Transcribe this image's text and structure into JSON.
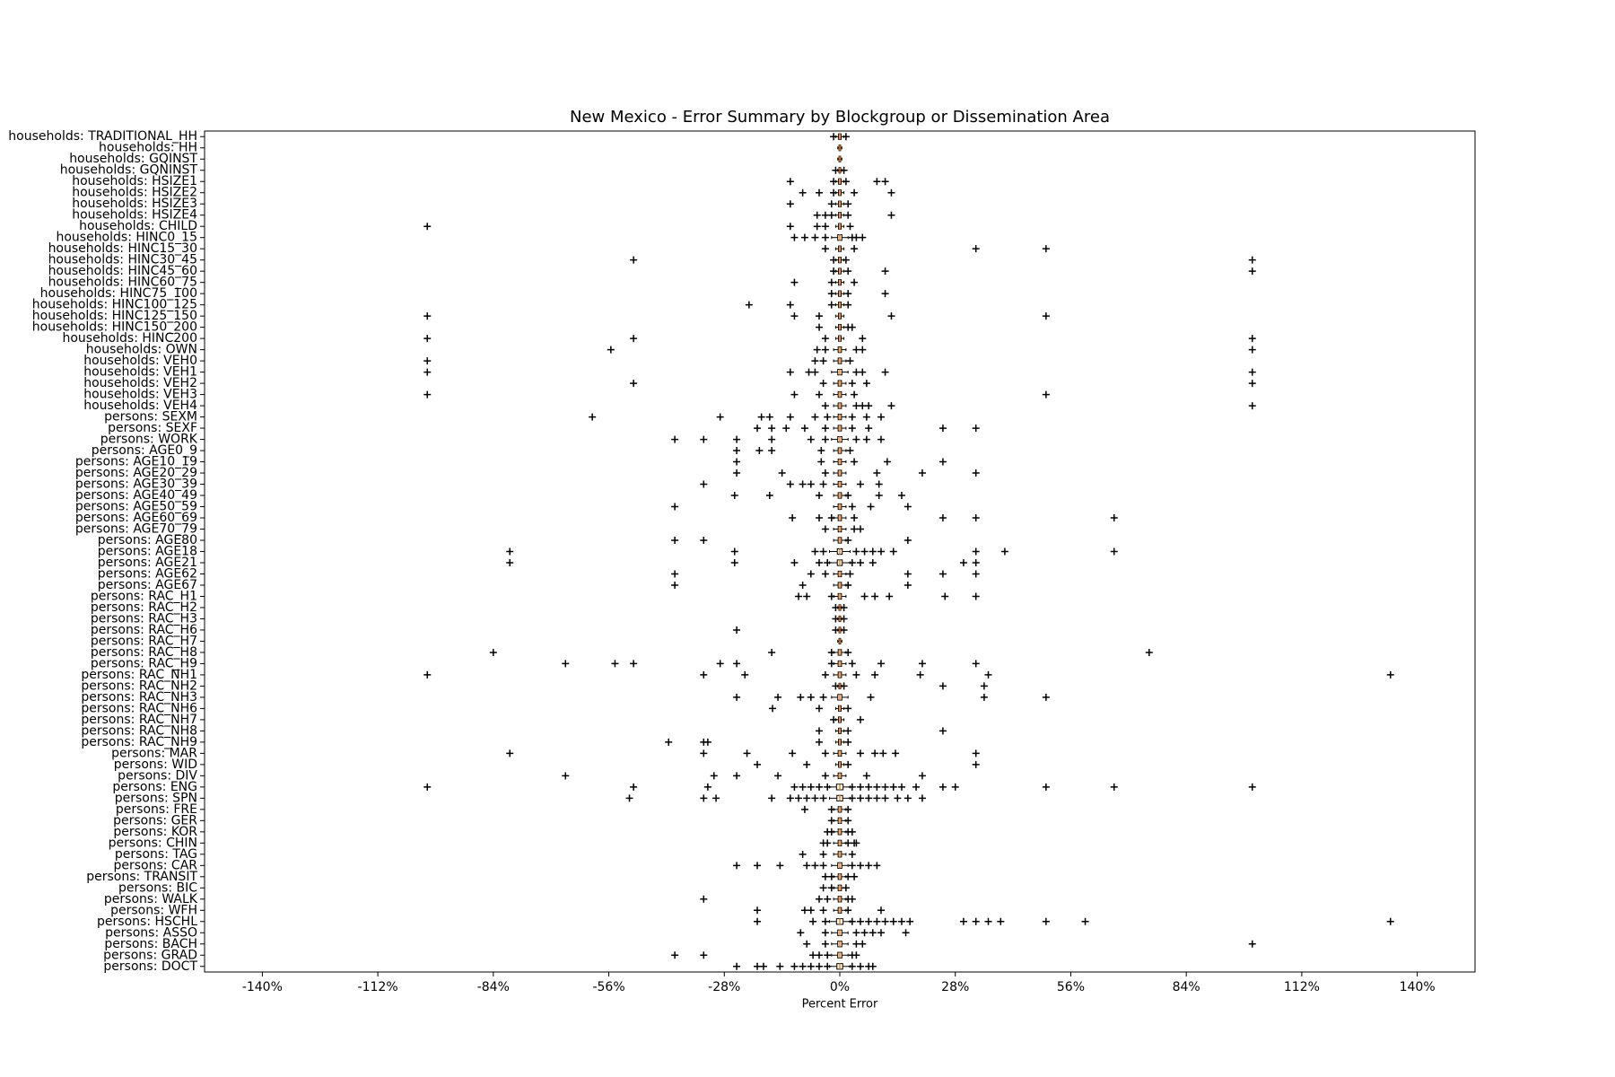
{
  "chart_data": {
    "type": "boxplot",
    "title": "New Mexico - Error Summary by Blockgroup or Dissemination Area",
    "x_label": "Percent Error",
    "color": "#000000",
    "median_color": "#ff7f0e",
    "xlim": [
      -154,
      154
    ],
    "xticks": [
      {
        "value": -140,
        "label": "-140%"
      },
      {
        "value": -112,
        "label": "-112%"
      },
      {
        "value": -84,
        "label": "-84%"
      },
      {
        "value": -56,
        "label": "-56%"
      },
      {
        "value": -28,
        "label": "-28%"
      },
      {
        "value": 0,
        "label": "0%"
      },
      {
        "value": 28,
        "label": "28%"
      },
      {
        "value": 56,
        "label": "56%"
      },
      {
        "value": 84,
        "label": "84%"
      },
      {
        "value": 112,
        "label": "112%"
      },
      {
        "value": 140,
        "label": "140%"
      }
    ],
    "categories": [
      "households: TRADITIONAL_HH",
      "households: HH",
      "households: GQINST",
      "households: GQNINST",
      "households: HSIZE1",
      "households: HSIZE2",
      "households: HSIZE3",
      "households: HSIZE4",
      "households: CHILD",
      "households: HINC0_15",
      "households: HINC15_30",
      "households: HINC30_45",
      "households: HINC45_60",
      "households: HINC60_75",
      "households: HINC75_100",
      "households: HINC100_125",
      "households: HINC125_150",
      "households: HINC150_200",
      "households: HINC200",
      "households: OWN",
      "households: VEH0",
      "households: VEH1",
      "households: VEH2",
      "households: VEH3",
      "households: VEH4",
      "persons: SEXM",
      "persons: SEXF",
      "persons: WORK",
      "persons: AGE0_9",
      "persons: AGE10_19",
      "persons: AGE20_29",
      "persons: AGE30_39",
      "persons: AGE40_49",
      "persons: AGE50_59",
      "persons: AGE60_69",
      "persons: AGE70_79",
      "persons: AGE80",
      "persons: AGE18",
      "persons: AGE21",
      "persons: AGE62",
      "persons: AGE67",
      "persons: RAC_H1",
      "persons: RAC_H2",
      "persons: RAC_H3",
      "persons: RAC_H6",
      "persons: RAC_H7",
      "persons: RAC_H8",
      "persons: RAC_H9",
      "persons: RAC_NH1",
      "persons: RAC_NH2",
      "persons: RAC_NH3",
      "persons: RAC_NH6",
      "persons: RAC_NH7",
      "persons: RAC_NH8",
      "persons: RAC_NH9",
      "persons: MAR",
      "persons: WID",
      "persons: DIV",
      "persons: ENG",
      "persons: SPN",
      "persons: FRE",
      "persons: GER",
      "persons: KOR",
      "persons: CHIN",
      "persons: TAG",
      "persons: CAR",
      "persons: TRANSIT",
      "persons: BIC",
      "persons: WALK",
      "persons: WFH",
      "persons: HSCHL",
      "persons: ASSO",
      "persons: BACH",
      "persons: GRAD",
      "persons: DOCT"
    ],
    "boxes": [
      [
        -1,
        -0.3,
        0,
        0.3,
        1
      ],
      [
        -0.5,
        -0.2,
        0,
        0.2,
        0.5
      ],
      [
        -0.5,
        -0.2,
        0,
        0.2,
        0.5
      ],
      [
        -0.5,
        -0.2,
        0,
        0.2,
        0.5
      ],
      [
        -1,
        -0.3,
        0,
        0.3,
        1
      ],
      [
        -1,
        -0.3,
        0,
        0.3,
        1
      ],
      [
        -1,
        -0.3,
        0,
        0.3,
        1
      ],
      [
        -1,
        -0.3,
        0,
        0.3,
        1
      ],
      [
        -1,
        -0.3,
        0,
        0.3,
        1
      ],
      [
        -2,
        -0.5,
        0,
        0.5,
        2
      ],
      [
        -1,
        -0.3,
        0,
        0.3,
        1
      ],
      [
        -1,
        -0.3,
        0,
        0.3,
        1
      ],
      [
        -1,
        -0.3,
        0,
        0.3,
        1
      ],
      [
        -1,
        -0.3,
        0,
        0.3,
        1
      ],
      [
        -1,
        -0.3,
        0,
        0.3,
        1
      ],
      [
        -1,
        -0.3,
        0,
        0.3,
        1
      ],
      [
        -1,
        -0.3,
        0,
        0.3,
        1
      ],
      [
        -1,
        -0.3,
        0,
        0.3,
        1
      ],
      [
        -1,
        -0.3,
        0,
        0.3,
        1
      ],
      [
        -1.5,
        -0.4,
        0,
        0.4,
        1.5
      ],
      [
        -1.5,
        -0.4,
        0,
        0.4,
        1.5
      ],
      [
        -2,
        -0.5,
        0,
        0.5,
        2
      ],
      [
        -1.5,
        -0.4,
        0,
        0.4,
        1.5
      ],
      [
        -1.5,
        -0.4,
        0,
        0.4,
        1.5
      ],
      [
        -1.5,
        -0.4,
        0,
        0.4,
        1.5
      ],
      [
        -1.5,
        -0.4,
        0,
        0.4,
        1.5
      ],
      [
        -1.5,
        -0.4,
        0,
        0.4,
        1.5
      ],
      [
        -2,
        -0.5,
        0,
        0.5,
        2
      ],
      [
        -1.5,
        -0.4,
        0,
        0.4,
        1.5
      ],
      [
        -1.5,
        -0.4,
        0,
        0.4,
        1.5
      ],
      [
        -1.5,
        -0.4,
        0,
        0.4,
        1.5
      ],
      [
        -1.5,
        -0.4,
        0,
        0.4,
        1.5
      ],
      [
        -1.5,
        -0.4,
        0,
        0.4,
        1.5
      ],
      [
        -1.5,
        -0.4,
        0,
        0.4,
        1.5
      ],
      [
        -1.5,
        -0.4,
        0,
        0.4,
        1.5
      ],
      [
        -1.5,
        -0.4,
        0,
        0.4,
        1.5
      ],
      [
        -1.5,
        -0.4,
        0,
        0.4,
        1.5
      ],
      [
        -2.5,
        -0.6,
        0,
        0.6,
        2.5
      ],
      [
        -2.5,
        -0.6,
        0,
        0.6,
        2.5
      ],
      [
        -1.5,
        -0.4,
        0,
        0.4,
        1.5
      ],
      [
        -1.5,
        -0.4,
        0,
        0.4,
        1.5
      ],
      [
        -1.5,
        -0.4,
        0,
        0.4,
        1.5
      ],
      [
        -0.5,
        -0.2,
        0,
        0.2,
        0.5
      ],
      [
        -0.5,
        -0.2,
        0,
        0.2,
        0.5
      ],
      [
        -0.5,
        -0.2,
        0,
        0.2,
        0.5
      ],
      [
        -0.5,
        -0.2,
        0,
        0.2,
        0.5
      ],
      [
        -1.5,
        -0.4,
        0,
        0.4,
        1.5
      ],
      [
        -1.5,
        -0.4,
        0,
        0.4,
        1.5
      ],
      [
        -1.5,
        -0.4,
        0,
        0.4,
        1.5
      ],
      [
        -0.5,
        -0.2,
        0,
        0.2,
        0.5
      ],
      [
        -2,
        -0.5,
        0,
        0.5,
        2
      ],
      [
        -1,
        -0.3,
        0,
        0.3,
        1
      ],
      [
        -1,
        -0.3,
        0,
        0.3,
        1
      ],
      [
        -1,
        -0.3,
        0,
        0.3,
        1
      ],
      [
        -1,
        -0.3,
        0,
        0.3,
        1
      ],
      [
        -1.5,
        -0.4,
        0,
        0.4,
        1.5
      ],
      [
        -1,
        -0.3,
        0,
        0.3,
        1
      ],
      [
        -1.5,
        -0.4,
        0,
        0.4,
        1.5
      ],
      [
        -2.5,
        -0.8,
        0,
        0.8,
        2.5
      ],
      [
        -2.5,
        -0.7,
        0,
        0.7,
        2.5
      ],
      [
        -1.5,
        -0.4,
        0,
        0.4,
        1.5
      ],
      [
        -1.5,
        -0.4,
        0,
        0.4,
        1.5
      ],
      [
        -1.5,
        -0.4,
        0,
        0.4,
        1.5
      ],
      [
        -1.5,
        -0.4,
        0,
        0.4,
        1.5
      ],
      [
        -1.5,
        -0.4,
        0,
        0.4,
        1.5
      ],
      [
        -2,
        -0.5,
        0,
        0.5,
        2
      ],
      [
        -1.5,
        -0.4,
        0,
        0.4,
        1.5
      ],
      [
        -1.5,
        -0.4,
        0,
        0.4,
        1.5
      ],
      [
        -1.5,
        -0.4,
        0,
        0.4,
        1.5
      ],
      [
        -1.5,
        -0.4,
        0,
        0.4,
        1.5
      ],
      [
        -2.5,
        -0.8,
        0,
        0.8,
        2.5
      ],
      [
        -2,
        -0.5,
        0,
        0.5,
        2
      ],
      [
        -2,
        -0.5,
        0,
        0.5,
        2
      ],
      [
        -2,
        -0.5,
        0,
        0.5,
        2
      ],
      [
        -2.5,
        -0.7,
        0,
        0.7,
        2.5
      ]
    ],
    "fliers": [
      [
        -1.5,
        1.5
      ],
      [],
      [],
      [
        -1,
        1
      ],
      [
        -12,
        -1.5,
        1.5,
        9,
        11
      ],
      [
        -9,
        -5,
        -1.5,
        3.5,
        12.5
      ],
      [
        -12,
        -2,
        2
      ],
      [
        -5.5,
        -3.5,
        -2,
        2,
        12.5
      ],
      [
        -100,
        -12,
        -5.5,
        -3.5,
        2.5
      ],
      [
        -11,
        -8.5,
        -6,
        -3.5,
        3,
        4,
        5.5
      ],
      [
        -3.5,
        3.5,
        33,
        50
      ],
      [
        -50,
        -1.5,
        1.5,
        100
      ],
      [
        -1.5,
        2,
        11,
        100
      ],
      [
        -11,
        -2,
        3.5
      ],
      [
        -2,
        2,
        11
      ],
      [
        -22,
        -12,
        -2,
        2
      ],
      [
        -100,
        -11,
        -5,
        12.5,
        50
      ],
      [
        -5,
        2,
        3
      ],
      [
        -100,
        -50,
        -3.5,
        5.5,
        100
      ],
      [
        -55.5,
        -5.5,
        -3.5,
        4,
        5.5,
        100
      ],
      [
        -100,
        -6,
        -4,
        2.5
      ],
      [
        -100,
        -12,
        -7.5,
        -6,
        4,
        5.5,
        11,
        100
      ],
      [
        -50,
        -4,
        3,
        6.5,
        100
      ],
      [
        -100,
        -11,
        -5,
        3.5,
        50
      ],
      [
        -3.5,
        4,
        5.5,
        7,
        12.5,
        100
      ],
      [
        -60,
        -29,
        -19,
        -17,
        -12,
        -6,
        -3,
        3,
        6.5,
        10
      ],
      [
        -20,
        -16.5,
        -13,
        -8.5,
        -3.5,
        3,
        7,
        25,
        33
      ],
      [
        -40,
        -33,
        -25,
        -16.5,
        -7,
        -3.5,
        4,
        6.5,
        10
      ],
      [
        -25,
        -19.5,
        -16.5,
        -4.5,
        2.5
      ],
      [
        -25,
        -4.5,
        3.5,
        11.5,
        25
      ],
      [
        -25,
        -14,
        -3.5,
        9,
        20,
        33
      ],
      [
        -33,
        -12,
        -9,
        -7,
        -4,
        5,
        9.5
      ],
      [
        -25.5,
        -17,
        -5,
        2,
        9.5,
        15
      ],
      [
        -40,
        3,
        7.5,
        16.5
      ],
      [
        -11.5,
        -5,
        -2,
        3.5,
        25,
        33,
        66.5
      ],
      [
        -3.5,
        3.5,
        5
      ],
      [
        -40,
        -33,
        2,
        16.5
      ],
      [
        -80,
        -25.5,
        -6,
        -4,
        4,
        6,
        8,
        10,
        13,
        33,
        40,
        66.5
      ],
      [
        -80,
        -25.5,
        -11,
        -5,
        -3,
        3,
        5,
        8,
        30,
        33
      ],
      [
        -40,
        -7,
        -3.5,
        2.5,
        16.5,
        25,
        33
      ],
      [
        -40,
        -9,
        2,
        16.5
      ],
      [
        -10,
        -8,
        -2,
        6,
        8.5,
        12,
        25.5,
        33
      ],
      [
        -1,
        1
      ],
      [
        -1,
        1
      ],
      [
        -25,
        -1,
        1
      ],
      [],
      [
        -84,
        -16.5,
        -2,
        2,
        75
      ],
      [
        -66.5,
        -54.5,
        -50,
        -29,
        -25,
        -2,
        3,
        10,
        20,
        33
      ],
      [
        -100,
        -33,
        -23,
        -3.5,
        4,
        8.5,
        19.5,
        36,
        133.5
      ],
      [
        -1,
        1,
        25,
        35
      ],
      [
        -25,
        -15,
        -9.5,
        -7,
        -4,
        7.5,
        35,
        50
      ],
      [
        -16.3,
        -5,
        2
      ],
      [
        -1.5,
        5
      ],
      [
        -5,
        2,
        25
      ],
      [
        -41.5,
        -33,
        -32,
        -5,
        2
      ],
      [
        -80,
        -33,
        -22.5,
        -11.5,
        -3.5,
        5,
        8.5,
        10.5,
        13.5,
        33
      ],
      [
        -20,
        -8,
        2,
        33
      ],
      [
        -66.5,
        -30.5,
        -25,
        -15,
        -3.5,
        6.5,
        20
      ],
      [
        -100,
        -50,
        -32,
        -11,
        -9,
        -7,
        -5,
        -3,
        3,
        5,
        7,
        9,
        11,
        13,
        15,
        18.5,
        25,
        28,
        50,
        66.5,
        100
      ],
      [
        -51,
        -33,
        -30,
        -16.5,
        -12,
        -10,
        -8,
        -6,
        -4,
        3,
        5,
        7,
        9,
        11,
        14,
        16.5,
        20
      ],
      [
        -8.5,
        -2,
        2
      ],
      [
        -2,
        2
      ],
      [
        -3,
        -2,
        2,
        3
      ],
      [
        -4,
        -3,
        2,
        3.5,
        4
      ],
      [
        -9,
        -4,
        3
      ],
      [
        -25,
        -20,
        -14.5,
        -8,
        -6,
        -4,
        3,
        5,
        7,
        9
      ],
      [
        -3.5,
        -2,
        2,
        3.5
      ],
      [
        -4,
        -2,
        1.5
      ],
      [
        -33,
        -5,
        -3,
        2,
        3
      ],
      [
        -20,
        -8.5,
        -7,
        -4,
        2,
        10
      ],
      [
        -20,
        -6.5,
        -3.5,
        3,
        5,
        7,
        9,
        11,
        13,
        15,
        17,
        30,
        33,
        36,
        39,
        50,
        59.5,
        133.5
      ],
      [
        -9.5,
        -3.5,
        4,
        6,
        8,
        10,
        16
      ],
      [
        -8,
        -3.5,
        4,
        5.5,
        100
      ],
      [
        -40,
        -33,
        -6.5,
        -5,
        -3,
        3,
        4
      ],
      [
        -25,
        -20,
        -18.5,
        -14.5,
        -11,
        -9,
        -7,
        -5,
        -3,
        3,
        5,
        7,
        8
      ]
    ]
  }
}
